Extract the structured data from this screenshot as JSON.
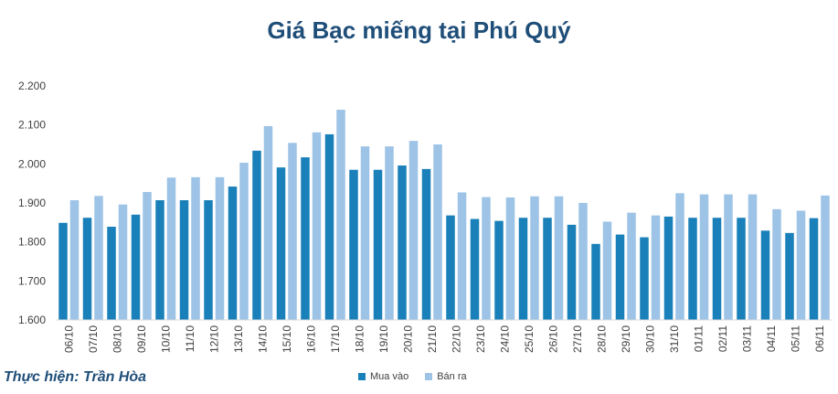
{
  "chart_data": {
    "type": "bar",
    "title": "Giá Bạc miếng tại Phú Quý",
    "categories": [
      "06/10",
      "07/10",
      "08/10",
      "09/10",
      "10/10",
      "11/10",
      "12/10",
      "13/10",
      "14/10",
      "15/10",
      "16/10",
      "17/10",
      "18/10",
      "19/10",
      "20/10",
      "21/10",
      "22/10",
      "23/10",
      "24/10",
      "25/10",
      "26/10",
      "27/10",
      "28/10",
      "29/10",
      "30/10",
      "31/10",
      "01/11",
      "02/11",
      "03/11",
      "04/11",
      "05/11",
      "06/11"
    ],
    "series": [
      {
        "name": "Mua vào",
        "color": "#1a80b9",
        "values": [
          1849,
          1862,
          1839,
          1870,
          1907,
          1907,
          1907,
          1942,
          2034,
          1991,
          2017,
          2076,
          1985,
          1985,
          1996,
          1987,
          1868,
          1859,
          1854,
          1862,
          1862,
          1844,
          1795,
          1819,
          1812,
          1865,
          1862,
          1862,
          1862,
          1829,
          1823,
          1861
        ]
      },
      {
        "name": "Bán ra",
        "color": "#9dc3e6",
        "values": [
          1907,
          1918,
          1896,
          1928,
          1965,
          1966,
          1966,
          2003,
          2097,
          2054,
          2081,
          2139,
          2045,
          2045,
          2059,
          2050,
          1927,
          1915,
          1914,
          1917,
          1917,
          1900,
          1852,
          1875,
          1868,
          1925,
          1922,
          1922,
          1922,
          1884,
          1880,
          1919
        ]
      }
    ],
    "ylim": [
      1600,
      2200
    ],
    "yticks": [
      1600,
      1700,
      1800,
      1900,
      2000,
      2100,
      2200
    ],
    "ytick_labels": [
      "1.600",
      "1.700",
      "1.800",
      "1.900",
      "2.000",
      "2.100",
      "2.200"
    ],
    "grid": false,
    "legend_position": "bottom"
  },
  "credit": "Thực hiện: Trần Hòa"
}
